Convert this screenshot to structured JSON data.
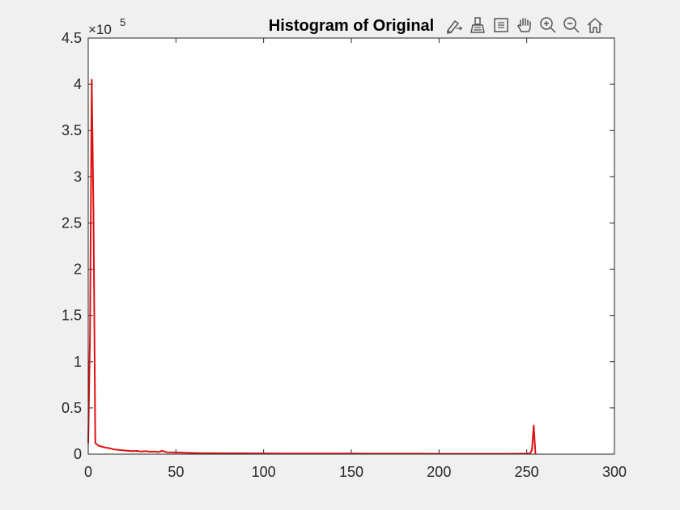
{
  "window": {
    "background": "#f0f0f0"
  },
  "toolbar": {
    "buttons": [
      {
        "name": "edit-plot-icon",
        "label": ""
      },
      {
        "name": "brush-icon",
        "label": ""
      },
      {
        "name": "data-tips-icon",
        "label": ""
      },
      {
        "name": "pan-hand-icon",
        "label": ""
      },
      {
        "name": "zoom-in-icon",
        "label": ""
      },
      {
        "name": "zoom-out-icon",
        "label": ""
      },
      {
        "name": "home-icon",
        "label": ""
      }
    ]
  },
  "colors": {
    "line": "#e01010",
    "axes": "#262626",
    "plot_bg": "#ffffff",
    "icon": "#555555"
  },
  "chart_data": {
    "type": "line",
    "title": "Histogram of Original",
    "xlabel": "",
    "ylabel": "",
    "xlim": [
      0,
      300
    ],
    "ylim": [
      0,
      450000
    ],
    "y_exponent_label": "×10",
    "y_exponent_power": "5",
    "x_ticks": [
      0,
      50,
      100,
      150,
      200,
      250,
      300
    ],
    "x_tick_labels": [
      "0",
      "50",
      "100",
      "150",
      "200",
      "250",
      "300"
    ],
    "y_ticks": [
      0,
      50000,
      100000,
      150000,
      200000,
      250000,
      300000,
      350000,
      400000,
      450000
    ],
    "y_tick_labels": [
      "0",
      "0.5",
      "1",
      "1.5",
      "2",
      "2.5",
      "3",
      "3.5",
      "4",
      "4.5"
    ],
    "grid": false,
    "series": [
      {
        "color": "#e01010",
        "x": [
          0,
          1,
          2,
          3,
          4,
          6,
          8,
          10,
          12,
          15,
          18,
          20,
          22,
          25,
          28,
          30,
          33,
          35,
          38,
          40,
          42,
          45,
          50,
          55,
          60,
          70,
          80,
          90,
          100,
          110,
          120,
          130,
          140,
          150,
          160,
          170,
          180,
          190,
          200,
          210,
          220,
          230,
          240,
          245,
          250,
          252,
          253,
          254,
          255
        ],
        "y": [
          12000,
          130000,
          405000,
          260000,
          12000,
          9000,
          8000,
          7000,
          6500,
          5000,
          4500,
          4000,
          3800,
          3300,
          3500,
          2800,
          3200,
          2600,
          2900,
          2300,
          3500,
          2000,
          1800,
          1500,
          1200,
          1000,
          900,
          850,
          800,
          700,
          700,
          650,
          600,
          600,
          550,
          550,
          500,
          500,
          450,
          450,
          400,
          400,
          400,
          500,
          600,
          800,
          5000,
          31000,
          0
        ]
      }
    ]
  }
}
